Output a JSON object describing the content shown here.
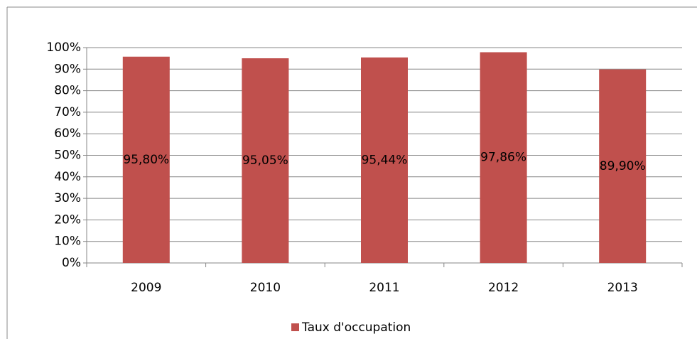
{
  "chart_data": {
    "type": "bar",
    "categories": [
      "2009",
      "2010",
      "2011",
      "2012",
      "2013"
    ],
    "series": [
      {
        "name": "Taux d'occupation",
        "color": "#c0504d",
        "values": [
          95.8,
          95.05,
          95.44,
          97.86,
          89.9
        ],
        "value_labels": [
          "95,80%",
          "95,05%",
          "95,44%",
          "97,86%",
          "89,90%"
        ]
      }
    ],
    "ylim": [
      0,
      100
    ],
    "yticks": [
      {
        "value": 0,
        "label": "0%"
      },
      {
        "value": 10,
        "label": "10%"
      },
      {
        "value": 20,
        "label": "20%"
      },
      {
        "value": 30,
        "label": "30%"
      },
      {
        "value": 40,
        "label": "40%"
      },
      {
        "value": 50,
        "label": "50%"
      },
      {
        "value": 60,
        "label": "60%"
      },
      {
        "value": 70,
        "label": "70%"
      },
      {
        "value": 80,
        "label": "80%"
      },
      {
        "value": 90,
        "label": "90%"
      },
      {
        "value": 100,
        "label": "100%"
      }
    ],
    "grid": true,
    "legend": "bottom"
  }
}
